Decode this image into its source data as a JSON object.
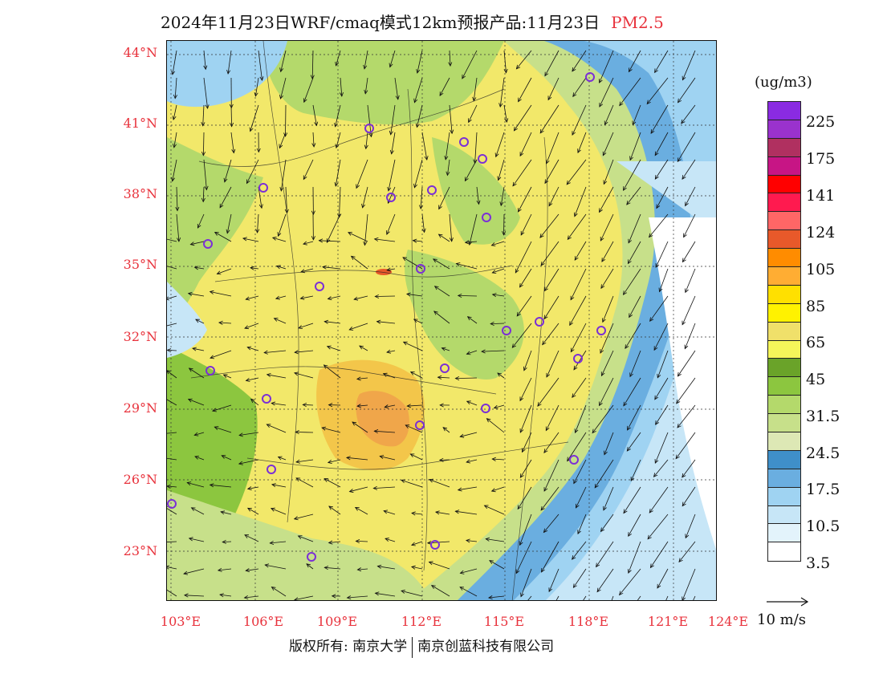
{
  "title": {
    "text": "2024年11月23日WRF/cmaq模式12km预报产品:11月23日",
    "pollutant": "PM2.5"
  },
  "axes": {
    "latitudes": [
      "44°N",
      "41°N",
      "38°N",
      "35°N",
      "32°N",
      "29°N",
      "26°N",
      "23°N"
    ],
    "longitudes": [
      "103°E",
      "106°E",
      "109°E",
      "112°E",
      "115°E",
      "118°E",
      "121°E",
      "124°E"
    ]
  },
  "colorbar": {
    "units": "(ug/m3)",
    "colors": [
      "#8a2be2",
      "#9a32cd",
      "#b03060",
      "#c71585",
      "#ff0000",
      "#ff1a4f",
      "#ff6666",
      "#e8592a",
      "#ff8c00",
      "#ffad33",
      "#ffe000",
      "#fff200",
      "#f0e06a",
      "#f5f55a",
      "#6aa329",
      "#8cc63f",
      "#b4d96b",
      "#c7e08a",
      "#dde8b5",
      "#3f8fc9",
      "#6aaee0",
      "#9fd3f2",
      "#c7e6f7",
      "#e3f3fb",
      "#ffffff"
    ],
    "labels": [
      "225",
      "175",
      "141",
      "124",
      "105",
      "85",
      "65",
      "45",
      "31.5",
      "24.5",
      "17.5",
      "10.5",
      "3.5"
    ]
  },
  "vector_reference": "10 m/s",
  "credit": {
    "left": "版权所有: 南京大学",
    "right": "南京创蓝科技有限公司"
  },
  "colors": {
    "accent": "#e8323c",
    "station": "#7b2fd6"
  }
}
